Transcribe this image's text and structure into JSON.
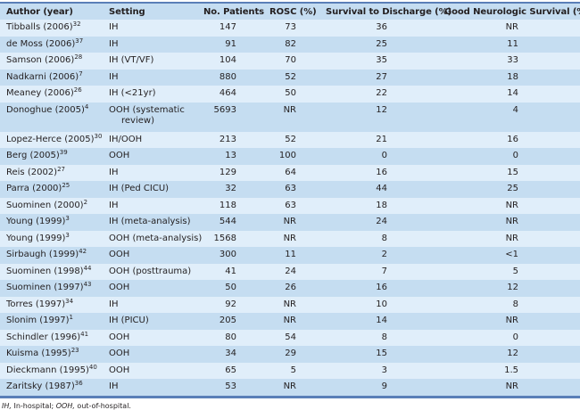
{
  "table": {
    "headers": [
      "Author (year)",
      "Setting",
      "No. Patients",
      "ROSC (%)",
      "Survival to Discharge (%)",
      "Good Neurologic Survival (%)"
    ],
    "rows": [
      {
        "author": "Tibballs (2006)",
        "ref": "32",
        "setting": "IH",
        "patients": "147",
        "rosc": "73",
        "survival": "36",
        "neuro": "NR"
      },
      {
        "author": "de Moss (2006)",
        "ref": "37",
        "setting": "IH",
        "patients": "91",
        "rosc": "82",
        "survival": "25",
        "neuro": "11"
      },
      {
        "author": "Samson (2006)",
        "ref": "28",
        "setting": "IH (VT/VF)",
        "patients": "104",
        "rosc": "70",
        "survival": "35",
        "neuro": "33"
      },
      {
        "author": "Nadkarni (2006)",
        "ref": "7",
        "setting": "IH",
        "patients": "880",
        "rosc": "52",
        "survival": "27",
        "neuro": "18"
      },
      {
        "author": "Meaney (2006)",
        "ref": "26",
        "setting": "IH (<21yr)",
        "patients": "464",
        "rosc": "50",
        "survival": "22",
        "neuro": "14"
      },
      {
        "author": "Donoghue (2005)",
        "ref": "4",
        "setting": "OOH (systematic",
        "setting2": "review)",
        "patients": "5693",
        "rosc": "NR",
        "survival": "12",
        "neuro": "4"
      },
      {
        "author": "Lopez-Herce (2005)",
        "ref": "30",
        "setting": "IH/OOH",
        "patients": "213",
        "rosc": "52",
        "survival": "21",
        "neuro": "16"
      },
      {
        "author": "Berg (2005)",
        "ref": "39",
        "setting": "OOH",
        "patients": "13",
        "rosc": "100",
        "survival": "0",
        "neuro": "0"
      },
      {
        "author": "Reis (2002)",
        "ref": "27",
        "setting": "IH",
        "patients": "129",
        "rosc": "64",
        "survival": "16",
        "neuro": "15"
      },
      {
        "author": "Parra (2000)",
        "ref": "25",
        "setting": "IH (Ped CICU)",
        "patients": "32",
        "rosc": "63",
        "survival": "44",
        "neuro": "25"
      },
      {
        "author": "Suominen (2000)",
        "ref": "2",
        "setting": "IH",
        "patients": "118",
        "rosc": "63",
        "survival": "18",
        "neuro": "NR"
      },
      {
        "author": "Young (1999)",
        "ref": "3",
        "setting": "IH (meta-analysis)",
        "patients": "544",
        "rosc": "NR",
        "survival": "24",
        "neuro": "NR"
      },
      {
        "author": "Young (1999)",
        "ref": "3",
        "setting": "OOH (meta-analysis)",
        "patients": "1568",
        "rosc": "NR",
        "survival": "8",
        "neuro": "NR"
      },
      {
        "author": "Sirbaugh (1999)",
        "ref": "42",
        "setting": "OOH",
        "patients": "300",
        "rosc": "11",
        "survival": "2",
        "neuro": "<1"
      },
      {
        "author": "Suominen (1998)",
        "ref": "44",
        "setting": "OOH (posttrauma)",
        "patients": "41",
        "rosc": "24",
        "survival": "7",
        "neuro": "5"
      },
      {
        "author": "Suominen (1997)",
        "ref": "43",
        "setting": "OOH",
        "patients": "50",
        "rosc": "26",
        "survival": "16",
        "neuro": "12"
      },
      {
        "author": "Torres (1997)",
        "ref": "34",
        "setting": "IH",
        "patients": "92",
        "rosc": "NR",
        "survival": "10",
        "neuro": "8"
      },
      {
        "author": "Slonim (1997)",
        "ref": "1",
        "setting": "IH (PICU)",
        "patients": "205",
        "rosc": "NR",
        "survival": "14",
        "neuro": "NR"
      },
      {
        "author": "Schindler (1996)",
        "ref": "41",
        "setting": "OOH",
        "patients": "80",
        "rosc": "54",
        "survival": "8",
        "neuro": "0"
      },
      {
        "author": "Kuisma (1995)",
        "ref": "23",
        "setting": "OOH",
        "patients": "34",
        "rosc": "29",
        "survival": "15",
        "neuro": "12"
      },
      {
        "author": "Dieckmann (1995)",
        "ref": "40",
        "setting": "OOH",
        "patients": "65",
        "rosc": "5",
        "survival": "3",
        "neuro": "1.5"
      },
      {
        "author": "Zaritsky (1987)",
        "ref": "36",
        "setting": "IH",
        "patients": "53",
        "rosc": "NR",
        "survival": "9",
        "neuro": "NR"
      }
    ]
  },
  "footnote": {
    "abbr1": "IH,",
    "def1": " In-hospital; ",
    "abbr2": "OOH,",
    "def2": " out-of-hospital."
  },
  "colors": {
    "header_bg": "#c5ddf1",
    "row_light": "#e0eefa",
    "row_dark": "#c5ddf1",
    "rule": "#5a7fb8"
  }
}
